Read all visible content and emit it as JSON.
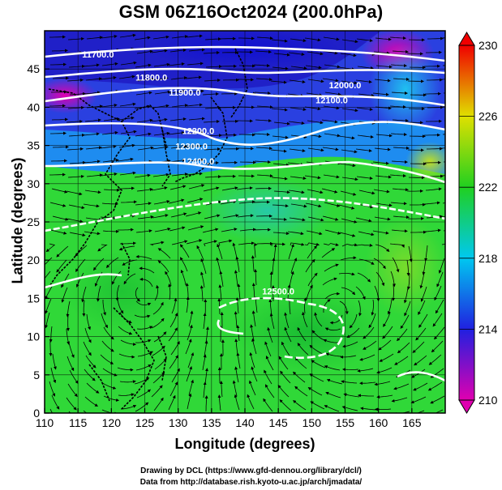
{
  "title": "GSM 06Z16Oct2024 (200.0hPa)",
  "chart_data": {
    "type": "heatmap",
    "description_fields": "temperature shading with geopotential height contours and wind streamlines",
    "xlabel": "Longitude (degrees)",
    "ylabel": "Latitude (degrees)",
    "xlim": [
      110,
      170
    ],
    "ylim": [
      0,
      50
    ],
    "x_ticks": [
      "110",
      "115",
      "120",
      "125",
      "130",
      "135",
      "140",
      "145",
      "150",
      "155",
      "160",
      "165"
    ],
    "y_ticks": [
      "0",
      "5",
      "10",
      "15",
      "20",
      "25",
      "30",
      "35",
      "40",
      "45"
    ],
    "colorbar": {
      "min": 210,
      "max": 230,
      "ticks": [
        "210",
        "214",
        "218",
        "222",
        "226",
        "230"
      ],
      "colors": [
        "#e000b0",
        "#2020e0",
        "#00c8f0",
        "#20d020",
        "#e0e000",
        "#f00000"
      ]
    },
    "contour_labels": [
      {
        "text": "11700.0",
        "lon": 118,
        "lat": 46.5
      },
      {
        "text": "11800.0",
        "lon": 126,
        "lat": 43.5
      },
      {
        "text": "11900.0",
        "lon": 131,
        "lat": 41.5
      },
      {
        "text": "12000.0",
        "lon": 155,
        "lat": 42.5
      },
      {
        "text": "12100.0",
        "lon": 153,
        "lat": 40.5
      },
      {
        "text": "12200.0",
        "lon": 133,
        "lat": 36.5
      },
      {
        "text": "12300.0",
        "lon": 132,
        "lat": 34.5
      },
      {
        "text": "12400.0",
        "lon": 133,
        "lat": 32.5
      },
      {
        "text": "12500.0",
        "lon": 145,
        "lat": 15.5
      }
    ]
  },
  "credits": {
    "line1": "Drawing by DCL (https://www.gfd-dennou.org/library/dcl/)",
    "line2": "Data from http://database.rish.kyoto-u.ac.jp/arch/jmadata/"
  }
}
